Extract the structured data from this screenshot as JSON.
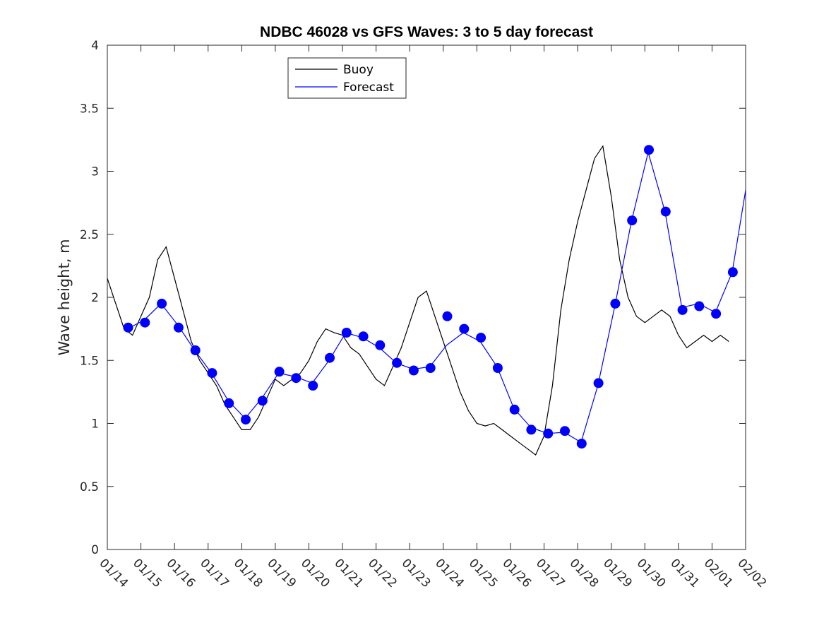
{
  "chart_data": {
    "type": "line",
    "title": "NDBC 46028 vs GFS Waves: 3 to 5 day forecast",
    "xlabel": "",
    "ylabel": "Wave height, m",
    "xlim": [
      0,
      19
    ],
    "ylim": [
      0,
      4
    ],
    "yticks": [
      0,
      0.5,
      1,
      1.5,
      2,
      2.5,
      3,
      3.5,
      4
    ],
    "ytick_labels": [
      "0",
      "0.5",
      "1",
      "1.5",
      "2",
      "2.5",
      "3",
      "3.5",
      "4"
    ],
    "xtick_labels": [
      "01/14",
      "01/15",
      "01/16",
      "01/17",
      "01/18",
      "01/19",
      "01/20",
      "01/21",
      "01/22",
      "01/23",
      "01/24",
      "01/25",
      "01/26",
      "01/27",
      "01/28",
      "01/29",
      "01/30",
      "01/31",
      "02/01",
      "02/02"
    ],
    "legend": {
      "position": "top-left",
      "entries": [
        "Buoy",
        "Forecast"
      ]
    },
    "colors": {
      "buoy": "#000000",
      "forecast": "#0000ff",
      "marker": "#0000ff",
      "axis": "#262626"
    },
    "series": [
      {
        "name": "Buoy",
        "x": [
          0,
          0.25,
          0.5,
          0.75,
          1.0,
          1.25,
          1.5,
          1.75,
          2.0,
          2.25,
          2.5,
          2.75,
          3.0,
          3.25,
          3.5,
          3.75,
          4.0,
          4.25,
          4.5,
          4.75,
          5.0,
          5.25,
          5.5,
          5.75,
          6.0,
          6.25,
          6.5,
          6.75,
          7.0,
          7.25,
          7.5,
          7.75,
          8.0,
          8.25,
          8.5,
          8.75,
          9.0,
          9.25,
          9.5,
          9.75,
          10.0,
          10.25,
          10.5,
          10.75,
          11.0,
          11.25,
          11.5,
          11.75,
          12.0,
          12.25,
          12.5,
          12.75,
          13.0,
          13.25,
          13.5,
          13.75,
          14.0,
          14.25,
          14.5,
          14.75,
          15.0,
          15.25,
          15.5,
          15.75,
          16.0,
          16.25,
          16.5,
          16.75,
          17.0,
          17.25,
          17.5,
          17.75,
          18.0,
          18.25,
          18.5
        ],
        "y": [
          2.15,
          1.95,
          1.75,
          1.7,
          1.85,
          2.0,
          2.3,
          2.4,
          2.15,
          1.9,
          1.65,
          1.5,
          1.4,
          1.3,
          1.15,
          1.05,
          0.95,
          0.95,
          1.05,
          1.2,
          1.35,
          1.3,
          1.35,
          1.4,
          1.5,
          1.65,
          1.75,
          1.72,
          1.7,
          1.6,
          1.55,
          1.45,
          1.35,
          1.3,
          1.45,
          1.6,
          1.8,
          2.0,
          2.05,
          1.85,
          1.65,
          1.45,
          1.25,
          1.1,
          1.0,
          0.98,
          1.0,
          0.95,
          0.9,
          0.85,
          0.8,
          0.75,
          0.9,
          1.3,
          1.9,
          2.3,
          2.6,
          2.85,
          3.1,
          3.2,
          2.8,
          2.3,
          2.0,
          1.85,
          1.8,
          1.85,
          1.9,
          1.85,
          1.7,
          1.6,
          1.65,
          1.7,
          1.65,
          1.7,
          1.65
        ]
      },
      {
        "name": "Forecast",
        "x": [
          0.6,
          1.1,
          1.6,
          2.1,
          2.6,
          3.1,
          3.6,
          4.1,
          4.6,
          5.1,
          5.6,
          6.1,
          6.6,
          7.1,
          7.6,
          8.1,
          8.6,
          9.1,
          9.6,
          10.1,
          10.6,
          11.1,
          11.6,
          12.1,
          12.6,
          13.1,
          13.6,
          14.1,
          14.6,
          15.1,
          15.6,
          16.1,
          16.6,
          17.1,
          17.6,
          18.1,
          18.6,
          19.0
        ],
        "y": [
          1.75,
          1.82,
          1.95,
          1.78,
          1.58,
          1.4,
          1.18,
          1.04,
          1.2,
          1.4,
          1.37,
          1.32,
          1.5,
          1.72,
          1.68,
          1.6,
          1.48,
          1.43,
          1.45,
          1.62,
          1.72,
          1.65,
          1.45,
          1.12,
          0.97,
          0.92,
          0.93,
          0.85,
          1.3,
          1.92,
          2.6,
          3.15,
          2.68,
          1.92,
          1.95,
          1.88,
          2.2,
          2.85
        ]
      },
      {
        "name": "Forecast (markers)",
        "x": [
          0.62,
          1.12,
          1.62,
          2.12,
          2.62,
          3.12,
          3.62,
          4.12,
          4.62,
          5.12,
          5.62,
          6.12,
          6.62,
          7.12,
          7.62,
          8.12,
          8.62,
          9.12,
          9.62,
          10.12,
          10.62,
          11.12,
          11.62,
          12.12,
          12.62,
          13.12,
          13.62,
          14.12,
          14.62,
          15.12,
          15.62,
          16.12,
          16.62,
          17.12,
          17.62,
          18.12,
          18.62
        ],
        "y": [
          1.76,
          1.8,
          1.95,
          1.76,
          1.58,
          1.4,
          1.16,
          1.03,
          1.18,
          1.41,
          1.36,
          1.3,
          1.52,
          1.72,
          1.69,
          1.62,
          1.48,
          1.42,
          1.44,
          1.85,
          1.75,
          1.68,
          1.44,
          1.11,
          0.95,
          0.92,
          0.94,
          0.84,
          1.32,
          1.95,
          2.61,
          3.17,
          2.68,
          1.9,
          1.93,
          1.87,
          2.2
        ]
      }
    ]
  }
}
